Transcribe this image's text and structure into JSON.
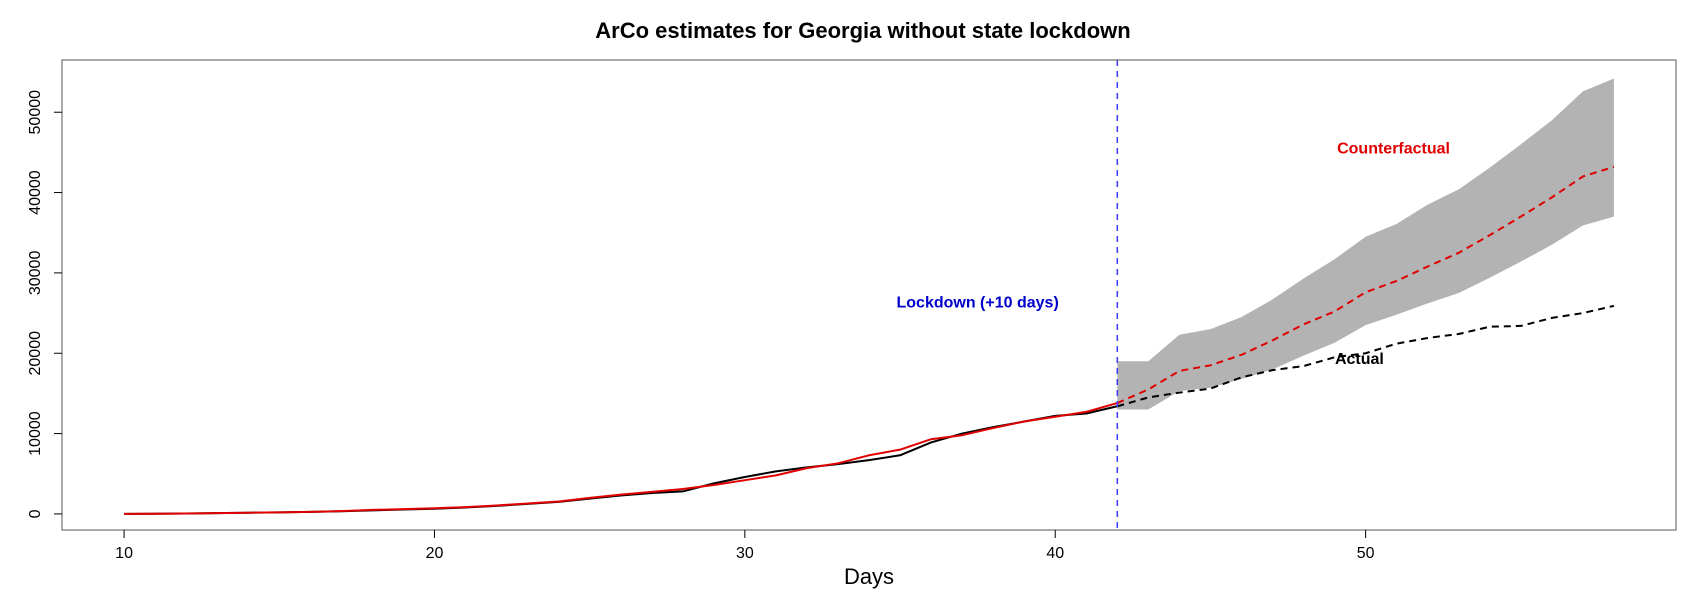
{
  "chart_data": {
    "type": "line",
    "title": "ArCo estimates for Georgia without state lockdown",
    "xlabel": "Days",
    "ylabel": "",
    "xlim": [
      8,
      60
    ],
    "ylim": [
      -2000,
      56500
    ],
    "xticks": [
      10,
      20,
      30,
      40,
      50
    ],
    "yticks": [
      0,
      10000,
      20000,
      30000,
      40000,
      50000
    ],
    "grid": false,
    "colors": {
      "actual": "#000000",
      "counterfactual": "#e00000",
      "band": "#b3b3b3",
      "lockdown": "#3a3aff",
      "lockdown_text": "#0000cc"
    },
    "series": [
      {
        "name": "Actual",
        "style": "solid",
        "x": [
          10,
          11,
          12,
          13,
          14,
          15,
          16,
          17,
          18,
          19,
          20,
          21,
          22,
          23,
          24,
          25,
          26,
          27,
          28,
          29,
          30,
          31,
          32,
          33,
          34,
          35,
          36,
          37,
          38,
          39,
          40,
          41,
          42
        ],
        "values": [
          0,
          20,
          50,
          100,
          150,
          200,
          250,
          330,
          450,
          550,
          650,
          800,
          1000,
          1250,
          1500,
          1900,
          2300,
          2600,
          2800,
          3800,
          4600,
          5300,
          5800,
          6200,
          6700,
          7300,
          8900,
          10000,
          10800,
          11500,
          12200,
          12500,
          13400
        ]
      },
      {
        "name": "Actual",
        "style": "dashed",
        "x": [
          42,
          43,
          44,
          45,
          46,
          47,
          48,
          49,
          50,
          51,
          52,
          53,
          54,
          55,
          56,
          57,
          58
        ],
        "values": [
          13400,
          14500,
          15100,
          15600,
          17000,
          17900,
          18400,
          19500,
          20000,
          21200,
          21900,
          22400,
          23300,
          23400,
          24400,
          25000,
          25900
        ]
      },
      {
        "name": "Counterfactual",
        "style": "solid",
        "x": [
          10,
          11,
          12,
          13,
          14,
          15,
          16,
          17,
          18,
          19,
          20,
          21,
          22,
          23,
          24,
          25,
          26,
          27,
          28,
          29,
          30,
          31,
          32,
          33,
          34,
          35,
          36,
          37,
          38,
          39,
          40,
          41,
          42
        ],
        "values": [
          0,
          20,
          50,
          100,
          150,
          200,
          250,
          350,
          500,
          600,
          700,
          850,
          1050,
          1300,
          1550,
          2000,
          2400,
          2750,
          3100,
          3600,
          4200,
          4800,
          5700,
          6300,
          7300,
          8000,
          9300,
          9800,
          10700,
          11500,
          12100,
          12700,
          13800
        ]
      },
      {
        "name": "Counterfactual",
        "style": "dashed",
        "x": [
          42,
          43,
          44,
          45,
          46,
          47,
          48,
          49,
          50,
          51,
          52,
          53,
          54,
          55,
          56,
          57,
          58
        ],
        "values": [
          13800,
          15500,
          17800,
          18500,
          19800,
          21600,
          23600,
          25200,
          27600,
          29000,
          30800,
          32500,
          34700,
          37000,
          39400,
          42000,
          43200
        ]
      }
    ],
    "band": {
      "x": [
        42,
        43,
        44,
        45,
        46,
        47,
        48,
        49,
        50,
        51,
        52,
        53,
        54,
        55,
        56,
        57,
        58
      ],
      "lower": [
        13000,
        13000,
        15300,
        15700,
        16800,
        18000,
        19700,
        21300,
        23500,
        24800,
        26200,
        27500,
        29400,
        31400,
        33500,
        35900,
        37000
      ],
      "upper": [
        19000,
        19000,
        22300,
        23000,
        24500,
        26700,
        29300,
        31700,
        34500,
        36100,
        38500,
        40400,
        43100,
        46000,
        49000,
        52600,
        54200
      ]
    },
    "vline": {
      "x": 42,
      "style": "dashed"
    },
    "annotations": [
      {
        "text": "Lockdown (+10 days)",
        "x": 37.5,
        "y": 26200,
        "color": "#0000cc"
      },
      {
        "text": "Counterfactual",
        "x": 50.9,
        "y": 45400,
        "color": "#e00000"
      },
      {
        "text": "Actual",
        "x": 49.8,
        "y": 19200,
        "color": "#000000"
      }
    ]
  }
}
